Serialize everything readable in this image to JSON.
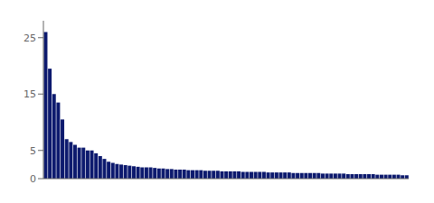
{
  "chart_data": {
    "type": "bar",
    "values": [
      26.0,
      19.5,
      15.0,
      13.5,
      10.5,
      7.0,
      6.5,
      6.0,
      5.5,
      5.5,
      5.0,
      5.0,
      4.5,
      4.0,
      3.5,
      3.0,
      2.8,
      2.6,
      2.5,
      2.4,
      2.3,
      2.2,
      2.1,
      2.0,
      2.0,
      2.0,
      1.9,
      1.8,
      1.8,
      1.7,
      1.7,
      1.6,
      1.6,
      1.6,
      1.5,
      1.5,
      1.5,
      1.5,
      1.4,
      1.4,
      1.4,
      1.4,
      1.3,
      1.3,
      1.3,
      1.3,
      1.3,
      1.2,
      1.2,
      1.2,
      1.2,
      1.2,
      1.2,
      1.1,
      1.1,
      1.1,
      1.1,
      1.1,
      1.1,
      1.0,
      1.0,
      1.0,
      1.0,
      1.0,
      1.0,
      1.0,
      0.9,
      0.9,
      0.9,
      0.9,
      0.9,
      0.9,
      0.8,
      0.8,
      0.8,
      0.8,
      0.8,
      0.8,
      0.8,
      0.7,
      0.7,
      0.7,
      0.7,
      0.7,
      0.7,
      0.6,
      0.6
    ],
    "color": "#0d1a6e",
    "ylim": [
      0,
      28
    ],
    "yticks": [
      0,
      5,
      15,
      25
    ],
    "grid": false,
    "tick_labels": "y"
  }
}
